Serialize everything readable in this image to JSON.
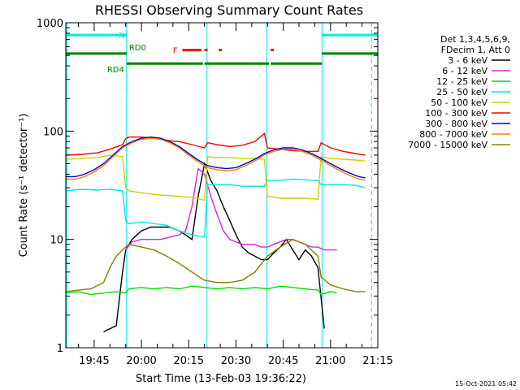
{
  "title": "RHESSI Observing Summary Count Rates",
  "footer_date": "15-Oct-2021 05:42",
  "chart_data": {
    "type": "line",
    "title": "RHESSI Observing Summary Count Rates",
    "xlabel": "Start Time (13-Feb-03 19:36:22)",
    "ylabel": "Count Rate (s⁻¹ detector⁻¹)",
    "yscale": "log",
    "xlim": [
      0,
      99
    ],
    "ylim": [
      1,
      1000
    ],
    "xtick_minutes": [
      9,
      24,
      39,
      54,
      69,
      84,
      99
    ],
    "xtick_labels": [
      "19:45",
      "20:00",
      "20:15",
      "20:30",
      "20:45",
      "21:00",
      "21:15"
    ],
    "ytick_values": [
      1,
      10,
      100,
      1000
    ],
    "ytick_labels": [
      "1",
      "10",
      "100",
      "1000"
    ],
    "legend": {
      "placement": "right",
      "header": [
        "Det 1,3,4,5,6,9,",
        "FDecim 1, Att 0"
      ]
    },
    "x_unit": "minutes after 19:36:22",
    "series": [
      {
        "name": "3 - 6 keV",
        "color": "#000000",
        "x": [
          12,
          16,
          18,
          19,
          21,
          24,
          27,
          30,
          33,
          36,
          38,
          40,
          42,
          44,
          46,
          48,
          50,
          52,
          54,
          56,
          58,
          60,
          62,
          64,
          66,
          68,
          70,
          72,
          74,
          76,
          78,
          80,
          82
        ],
        "y": [
          1.4,
          1.6,
          5,
          8,
          10,
          12,
          13,
          13,
          13,
          12,
          11,
          10,
          25,
          50,
          35,
          28,
          20,
          15,
          11,
          8.5,
          7.5,
          7,
          6.5,
          6.5,
          7.5,
          8.5,
          10,
          8,
          6.5,
          8,
          7,
          5.5,
          1.5
        ]
      },
      {
        "name": "6 - 12 keV",
        "color": "#e020e0",
        "x": [
          19,
          21,
          24,
          27,
          30,
          33,
          36,
          38,
          40,
          42,
          44,
          46,
          48,
          50,
          52,
          54,
          56,
          58,
          60,
          62,
          64,
          66,
          68,
          70,
          72,
          74,
          76,
          78,
          80,
          82,
          86
        ],
        "y": [
          8,
          9.5,
          10,
          10,
          10,
          10.5,
          11,
          12,
          20,
          45,
          40,
          25,
          17,
          12,
          10,
          9.5,
          9,
          9,
          9,
          8.5,
          8.5,
          9,
          9.5,
          10,
          10,
          9.5,
          9,
          8.5,
          8.5,
          8,
          8
        ]
      },
      {
        "name": "12 - 25 keV",
        "color": "#00e000",
        "x": [
          0,
          4,
          8,
          12,
          16,
          19,
          20,
          24,
          28,
          32,
          36,
          40,
          44,
          48,
          52,
          56,
          60,
          64,
          68,
          72,
          76,
          80,
          81,
          84,
          86
        ],
        "y": [
          3.2,
          3.3,
          3.1,
          3.2,
          3.3,
          3.2,
          3.5,
          3.6,
          3.5,
          3.6,
          3.5,
          3.7,
          3.6,
          3.5,
          3.6,
          3.5,
          3.6,
          3.5,
          3.7,
          3.6,
          3.5,
          3.4,
          3.1,
          3.3,
          3.2
        ]
      },
      {
        "name": "25 - 50 keV",
        "color": "#00e8e8",
        "x": [
          0,
          5,
          10,
          14,
          18,
          19,
          20,
          24,
          28,
          32,
          36,
          40,
          44,
          45,
          48,
          52,
          56,
          60,
          63,
          64,
          68,
          72,
          76,
          80,
          81,
          84,
          88,
          92,
          95
        ],
        "y": [
          28,
          29,
          28.5,
          29,
          28,
          15,
          14,
          14.5,
          14,
          13.5,
          12,
          11,
          10.5,
          32,
          32,
          32,
          31,
          31,
          31,
          35,
          35,
          36,
          35.5,
          35,
          32,
          32,
          32,
          31.5,
          30
        ]
      },
      {
        "name": "50 - 100 keV",
        "color": "#d0d000",
        "x": [
          0,
          5,
          10,
          14,
          18,
          19,
          20,
          24,
          28,
          32,
          36,
          40,
          44,
          45,
          48,
          52,
          56,
          60,
          63,
          64,
          68,
          72,
          76,
          80,
          81,
          84,
          88,
          92,
          95
        ],
        "y": [
          55,
          56,
          57,
          60,
          58,
          30,
          28,
          27,
          26,
          25.5,
          25,
          24.5,
          23,
          58,
          57,
          57,
          56,
          56,
          55,
          25,
          24,
          24,
          24,
          23.5,
          58,
          56,
          55,
          54,
          53
        ]
      },
      {
        "name": "100 - 300 keV",
        "color": "#ff0000",
        "x": [
          0,
          5,
          10,
          14,
          18,
          19,
          20,
          24,
          28,
          32,
          36,
          40,
          44,
          45,
          48,
          52,
          56,
          60,
          63,
          64,
          68,
          72,
          76,
          80,
          81,
          84,
          88,
          92,
          95
        ],
        "y": [
          60,
          61,
          63,
          68,
          75,
          85,
          88,
          88,
          86,
          82,
          80,
          75,
          70,
          78,
          75,
          72,
          74,
          80,
          95,
          70,
          68,
          66,
          65,
          65,
          78,
          70,
          65,
          62,
          60
        ]
      },
      {
        "name": "300 - 800 keV",
        "color": "#0000d0",
        "x": [
          0,
          3,
          6,
          9,
          12,
          15,
          18,
          21,
          24,
          27,
          30,
          33,
          36,
          39,
          42,
          45,
          48,
          51,
          54,
          57,
          60,
          63,
          66,
          69,
          72,
          75,
          78,
          81,
          84,
          87,
          90,
          93,
          95
        ],
        "y": [
          38,
          38,
          40,
          44,
          50,
          60,
          72,
          80,
          86,
          88,
          86,
          80,
          72,
          62,
          54,
          48,
          46,
          45,
          46,
          50,
          55,
          62,
          67,
          70,
          70,
          67,
          62,
          56,
          50,
          45,
          41,
          38,
          37
        ]
      },
      {
        "name": "800 - 7000 keV",
        "color": "#ff8000",
        "x": [
          0,
          3,
          6,
          9,
          12,
          15,
          18,
          21,
          24,
          27,
          30,
          33,
          36,
          39,
          42,
          45,
          48,
          51,
          54,
          57,
          60,
          63,
          66,
          69,
          72,
          75,
          78,
          81,
          84,
          87,
          90,
          93,
          95
        ],
        "y": [
          36,
          36,
          38,
          42,
          48,
          58,
          70,
          78,
          84,
          86,
          84,
          78,
          70,
          60,
          52,
          46,
          44,
          43,
          44,
          48,
          53,
          60,
          65,
          68,
          68,
          65,
          60,
          54,
          48,
          43,
          39,
          36,
          35
        ]
      },
      {
        "name": "7000 - 15000 keV",
        "color": "#808000",
        "x": [
          0,
          4,
          8,
          12,
          14,
          16,
          18,
          20,
          24,
          28,
          32,
          36,
          40,
          44,
          48,
          52,
          56,
          60,
          64,
          68,
          72,
          76,
          80,
          81,
          84,
          88,
          92,
          95
        ],
        "y": [
          3.3,
          3.4,
          3.5,
          4,
          5.5,
          7,
          8,
          9,
          8.5,
          8,
          7,
          6,
          5,
          4.2,
          4,
          4,
          4.2,
          5,
          7,
          8.5,
          10,
          9,
          7,
          4.5,
          3.8,
          3.5,
          3.3,
          3.3
        ]
      }
    ],
    "flags": [
      {
        "label": "N",
        "color": "#00e8e8",
        "level": 770,
        "segments": [
          [
            0,
            19.3
          ],
          [
            81.3,
            99
          ]
        ]
      },
      {
        "label": "F",
        "color": "#ff0000",
        "level": 560,
        "segments": [
          [
            37,
            43
          ],
          [
            44,
            45
          ],
          [
            48.5,
            49.5
          ],
          [
            65,
            66
          ]
        ]
      },
      {
        "label": "RD0",
        "color": "#008000",
        "level": 520,
        "segments": [
          [
            0,
            19.3
          ],
          [
            81.3,
            99
          ]
        ]
      },
      {
        "label": "RD4",
        "color": "#008000",
        "level": 420,
        "segments": [
          [
            19.3,
            43.5
          ],
          [
            44,
            64.5
          ],
          [
            65,
            81.3
          ]
        ]
      }
    ],
    "cyan_boundaries": [
      0,
      19.3,
      44.8,
      63.8,
      81.3,
      99
    ],
    "dashed_boundaries": [
      19.3,
      97
    ]
  }
}
